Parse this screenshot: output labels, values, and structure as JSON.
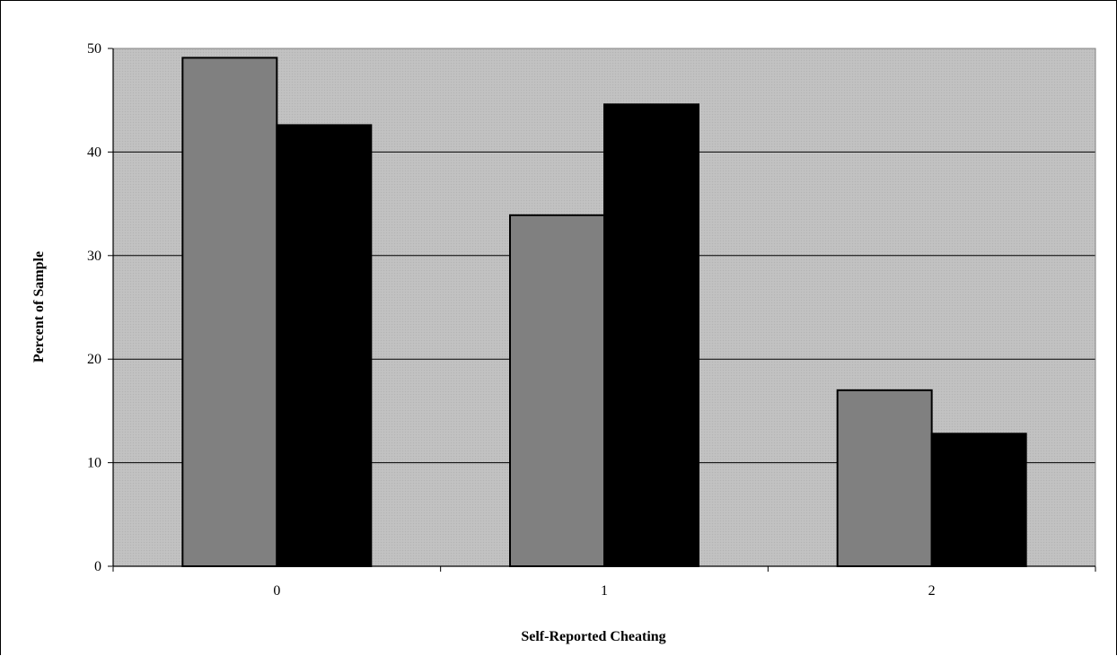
{
  "chart_data": {
    "type": "bar",
    "title": "",
    "xlabel": "Self-Reported Cheating",
    "ylabel": "Percent of Sample",
    "categories": [
      "0",
      "1",
      "2"
    ],
    "series": [
      {
        "values": [
          49.1,
          33.9,
          17.0
        ],
        "color": "#808080"
      },
      {
        "values": [
          42.6,
          44.6,
          12.8
        ],
        "color": "#000000"
      }
    ],
    "ylim": [
      0,
      50
    ],
    "yticks": [
      "0",
      "10",
      "20",
      "30",
      "40",
      "50"
    ],
    "grid": true,
    "legend": "none",
    "plot_background": "#c0c0c0"
  }
}
